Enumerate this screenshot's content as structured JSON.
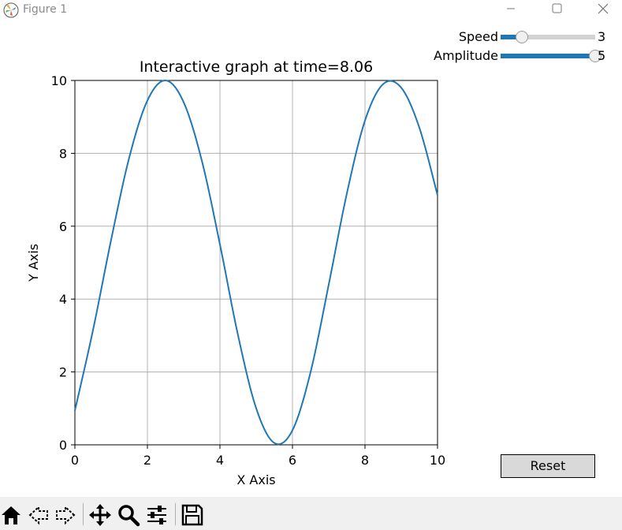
{
  "window": {
    "title": "Figure 1",
    "controls": {
      "minimize": "minimize-icon",
      "maximize": "maximize-icon",
      "close": "close-icon"
    }
  },
  "controls": {
    "speed": {
      "label": "Speed",
      "value": "3",
      "min": 1,
      "max": 10,
      "current": 3
    },
    "amplitude": {
      "label": "Amplitude",
      "value": "5",
      "min": 0,
      "max": 5,
      "current": 5
    },
    "reset_label": "Reset"
  },
  "toolbar": {
    "buttons": [
      "home-icon",
      "back-icon",
      "forward-icon",
      "pan-icon",
      "zoom-icon",
      "configure-icon",
      "save-icon"
    ]
  },
  "colors": {
    "line": "#1f77b4",
    "grid": "#b0b0b0",
    "toolbar_bg": "#f0f0f0"
  },
  "chart_data": {
    "type": "line",
    "title": "Interactive graph at time=8.06",
    "xlabel": "X Axis",
    "ylabel": "Y Axis",
    "xlim": [
      0,
      10
    ],
    "ylim": [
      0,
      10
    ],
    "xticks": [
      "0",
      "2",
      "4",
      "6",
      "8",
      "10"
    ],
    "yticks": [
      "0",
      "2",
      "4",
      "6",
      "8",
      "10"
    ],
    "grid": true,
    "series": [
      {
        "x": [
          0,
          0.5,
          1,
          1.5,
          2,
          2.5,
          3,
          3.5,
          4,
          4.5,
          5,
          5.5,
          6,
          6.5,
          7,
          7.5,
          8,
          8.5,
          9,
          9.5,
          10
        ],
        "y": [
          0.94,
          3.15,
          5.63,
          7.89,
          9.45,
          10.0,
          9.4,
          7.8,
          5.5,
          3.0,
          1.0,
          0.05,
          0.4,
          2.0,
          4.4,
          6.9,
          8.9,
          9.9,
          9.8,
          8.7,
          6.85
        ]
      }
    ]
  }
}
